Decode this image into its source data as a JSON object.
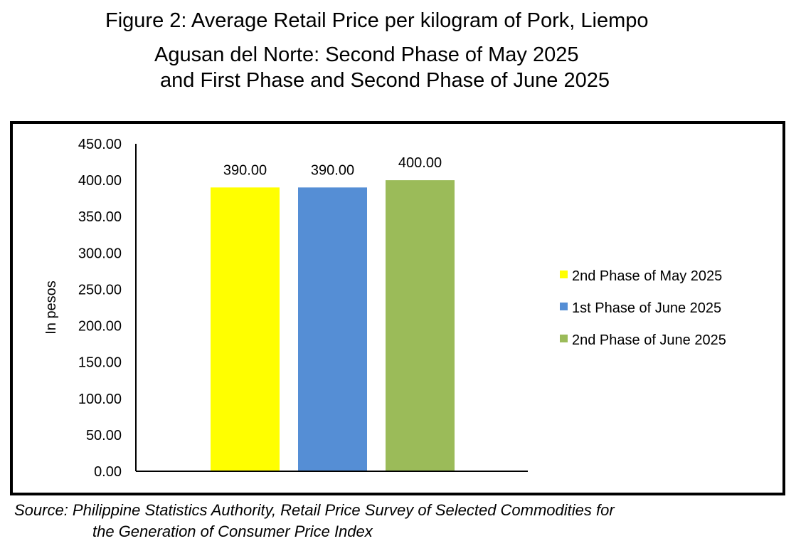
{
  "title": {
    "line1": "Figure 2: Average Retail Price per kilogram of Pork, Liempo",
    "line2": "Agusan del Norte: Second Phase of May 2025",
    "line3": "and First Phase and Second Phase of June 2025"
  },
  "source": {
    "line1": "Source: Philippine Statistics Authority, Retail Price Survey of Selected Commodities for",
    "line2": "the Generation of Consumer Price Index"
  },
  "chart_data": {
    "type": "bar",
    "title": "Figure 2: Average Retail Price per kilogram of Pork, Liempo Agusan del Norte: Second Phase of May 2025 and First Phase and Second Phase of June 2025",
    "ylabel": "In pesos",
    "xlabel": "",
    "ylim": [
      0,
      450
    ],
    "yticks": [
      "0.00",
      "50.00",
      "100.00",
      "150.00",
      "200.00",
      "250.00",
      "300.00",
      "350.00",
      "400.00",
      "450.00"
    ],
    "grid": false,
    "legend_position": "right",
    "series": [
      {
        "name": "2nd Phase of May 2025",
        "value": 390,
        "label": "390.00",
        "color": "#FFFF00"
      },
      {
        "name": "1st Phase of June 2025",
        "value": 390,
        "label": "390.00",
        "color": "#558ED5"
      },
      {
        "name": "2nd Phase of June 2025",
        "value": 400,
        "label": "400.00",
        "color": "#9BBB59"
      }
    ]
  }
}
